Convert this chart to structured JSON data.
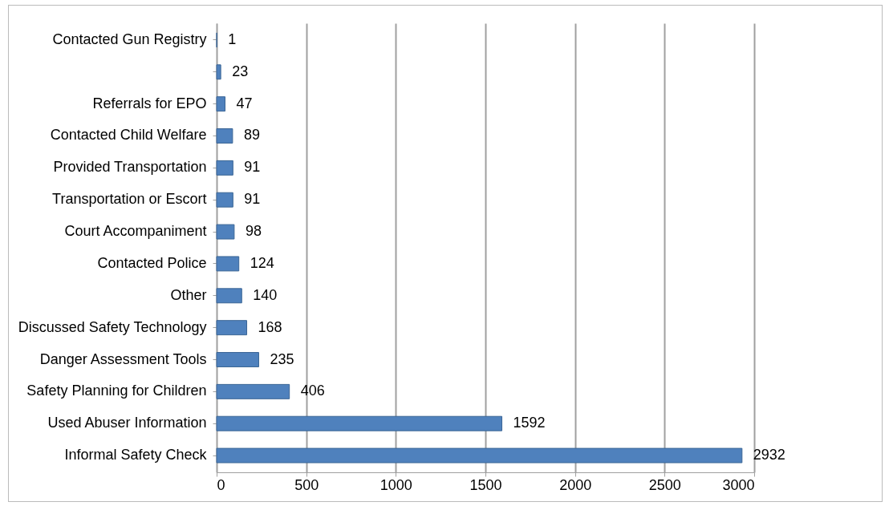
{
  "chart_data": {
    "type": "bar",
    "orientation": "horizontal",
    "categories": [
      "Contacted Gun Registry",
      null,
      "Referrals for EPO",
      "Contacted Child Welfare",
      "Provided Transportation",
      "Transportation or Escort",
      "Court Accompaniment",
      "Contacted Police",
      "Other",
      "Discussed Safety Technology",
      "Danger Assessment Tools",
      "Safety Planning for Children",
      "Used Abuser Information",
      "Informal Safety Check"
    ],
    "values": [
      1,
      23,
      47,
      89,
      91,
      91,
      98,
      124,
      140,
      168,
      235,
      406,
      1592,
      2932
    ],
    "color": "#4f81bd",
    "xlim": [
      0,
      3000
    ],
    "xticks": [
      0,
      500,
      1000,
      1500,
      2000,
      2500,
      3000
    ],
    "grid": "x",
    "data_labels": true
  }
}
